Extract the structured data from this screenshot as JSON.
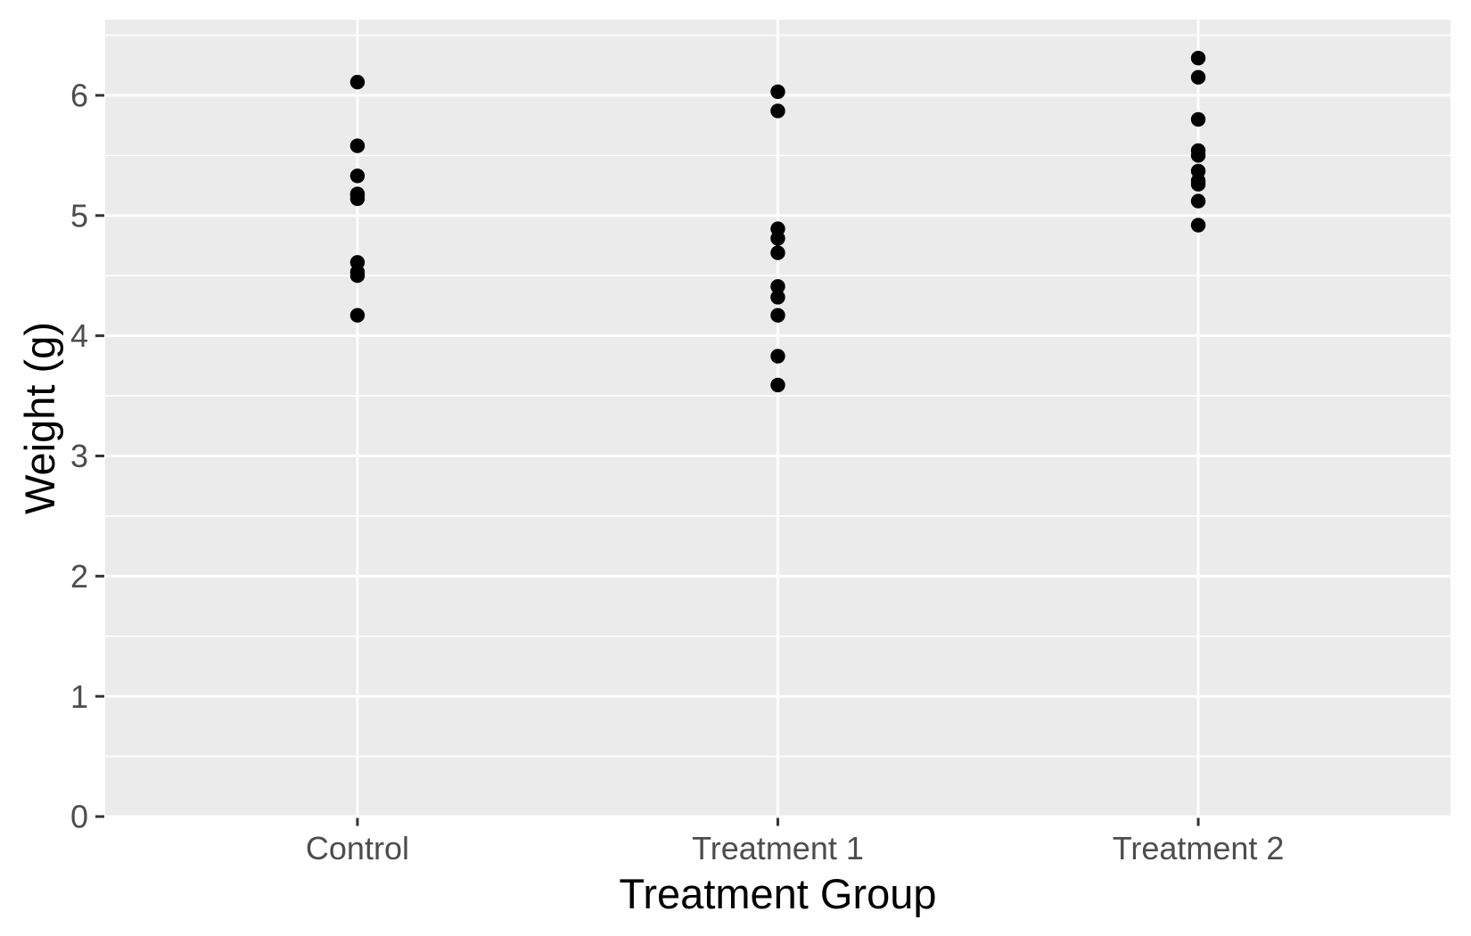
{
  "colors": {
    "figure_background": "#FFFFFF",
    "panel_background": "#EBEBEB",
    "grid_color": "#FFFFFF",
    "tick_mark_color": "#333333",
    "tick_label_color": "#4D4D4D",
    "axis_title_color": "#000000",
    "point_color": "#000000"
  },
  "chart_data": {
    "type": "scatter",
    "subtype": "strip-plot-categorical",
    "title": "",
    "xlabel": "Treatment Group",
    "ylabel": "Weight (g)",
    "categories": [
      "Control",
      "Treatment 1",
      "Treatment 2"
    ],
    "series": [
      {
        "name": "Control",
        "values": [
          4.17,
          5.58,
          5.18,
          6.11,
          4.5,
          4.61,
          5.17,
          4.53,
          5.33,
          5.14
        ]
      },
      {
        "name": "Treatment 1",
        "values": [
          4.81,
          4.17,
          4.41,
          3.59,
          5.87,
          3.83,
          6.03,
          4.89,
          4.32,
          4.69
        ]
      },
      {
        "name": "Treatment 2",
        "values": [
          6.31,
          5.12,
          5.54,
          5.5,
          5.37,
          5.29,
          4.92,
          6.15,
          5.8,
          5.26
        ]
      }
    ],
    "y_ticks": [
      0,
      1,
      2,
      3,
      4,
      5,
      6
    ],
    "y_tick_labels": [
      "0",
      "1",
      "2",
      "3",
      "4",
      "5",
      "6"
    ],
    "y_minor_step": 0.5,
    "ylim": [
      0,
      6.63
    ],
    "grid": true,
    "legend": false
  }
}
